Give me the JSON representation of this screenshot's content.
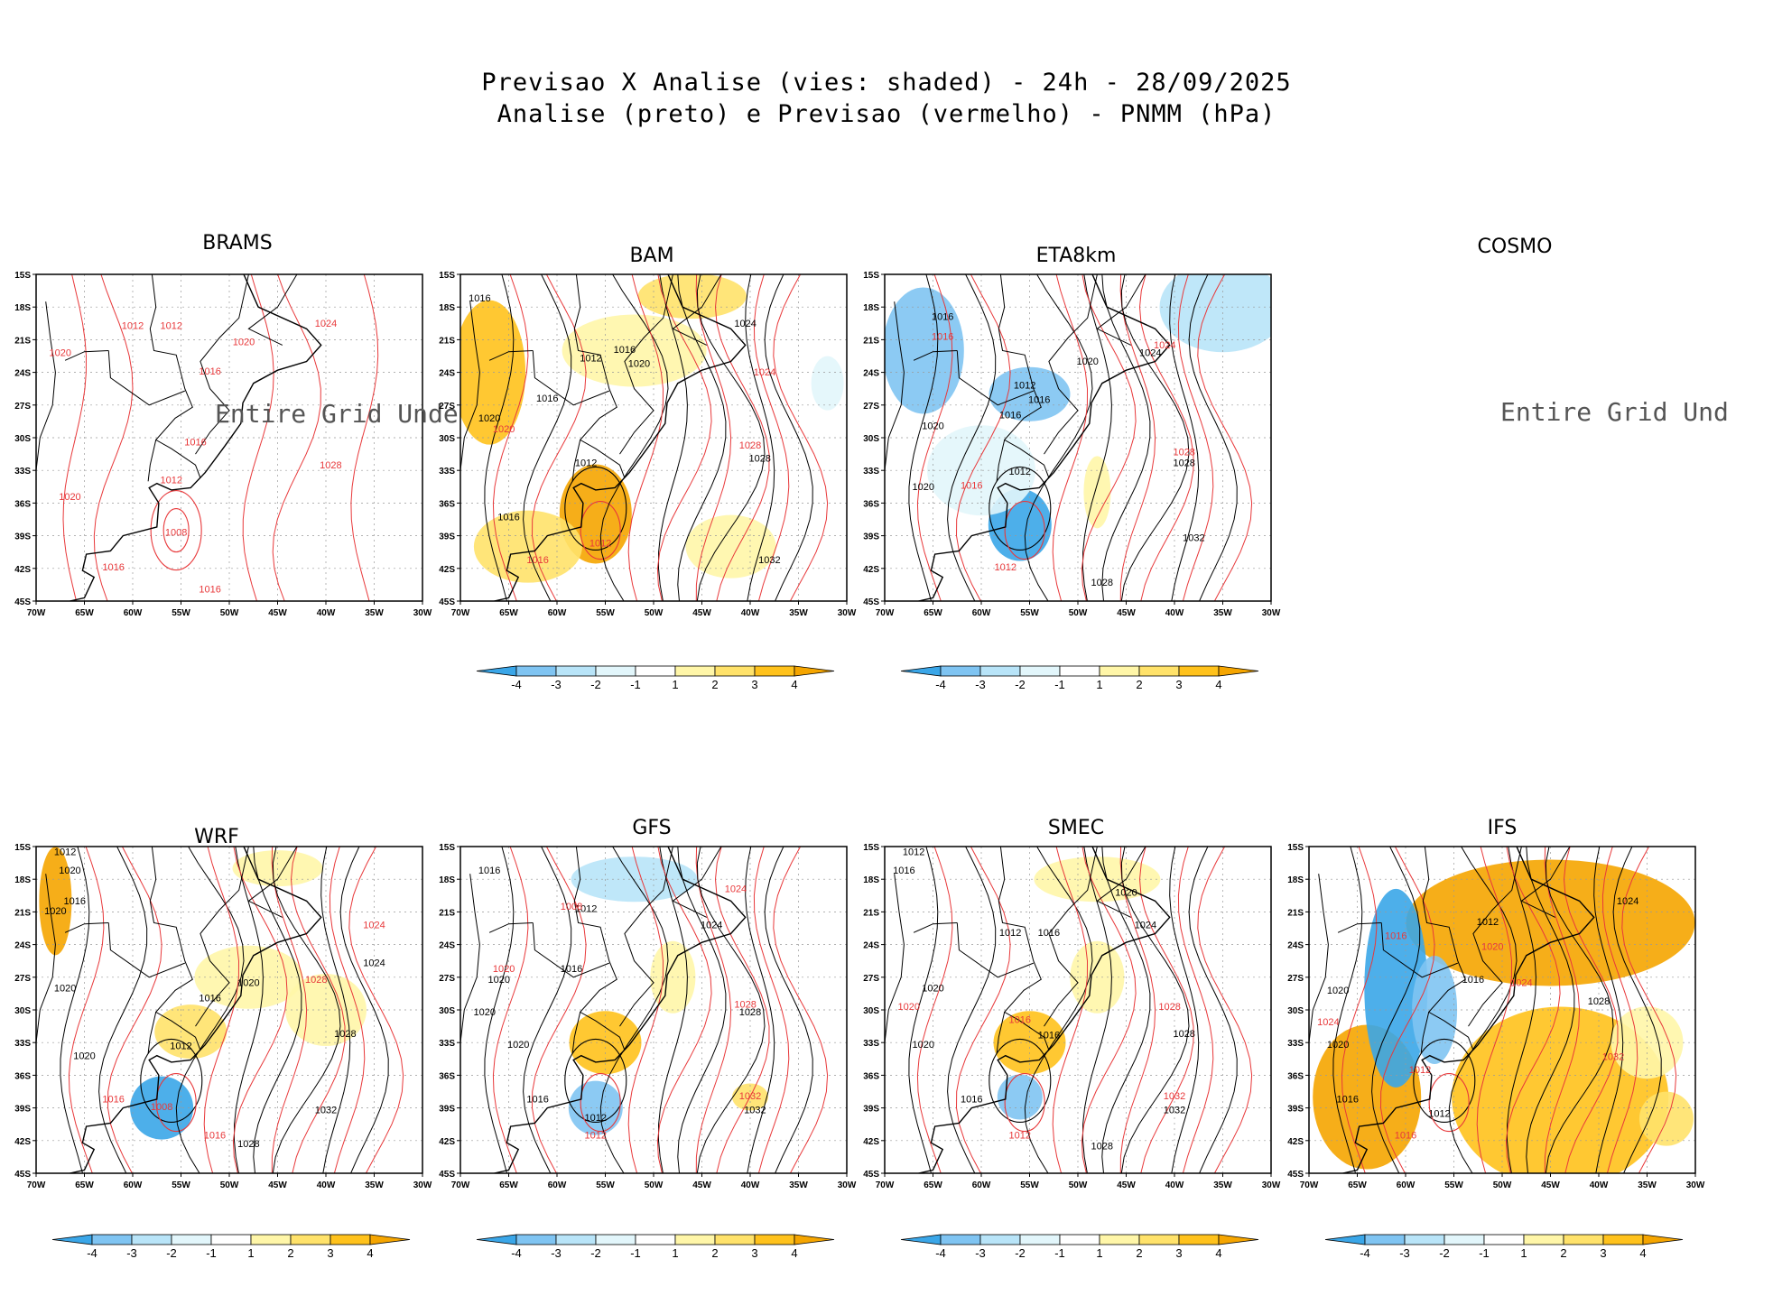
{
  "title": {
    "line1": "Previsao X Analise (vies: shaded) - 24h - 28/09/2025",
    "line2": "Analise (preto) e Previsao (vermelho) - PNMM (hPa)"
  },
  "axes": {
    "lat_labels": [
      "15S",
      "18S",
      "21S",
      "24S",
      "27S",
      "30S",
      "33S",
      "36S",
      "39S",
      "42S",
      "45S"
    ],
    "lon_labels": [
      "70W",
      "65W",
      "60W",
      "55W",
      "50W",
      "45W",
      "40W",
      "35W",
      "30W"
    ]
  },
  "colorbar": {
    "labels": [
      "-4",
      "-3",
      "-2",
      "-1",
      "1",
      "2",
      "3",
      "4"
    ],
    "colors": [
      "#3aa6e8",
      "#7fc4f2",
      "#b8e4f8",
      "#e2f6fb",
      "#ffffff",
      "#fff6a8",
      "#ffe26a",
      "#ffc21c",
      "#f5a500"
    ]
  },
  "colors": {
    "analysis": "#000000",
    "forecast": "#e8383a",
    "bias_pos": "#ffc21c",
    "bias_neg": "#3aa6e8"
  },
  "panels": [
    {
      "id": "brams",
      "name": "BRAMS",
      "has_map": true,
      "shading": false,
      "undef_text": "Entire Grid Undef",
      "colorbar": false,
      "labels": [
        {
          "t": "1012",
          "c": "r",
          "lon": -60,
          "lat": -20
        },
        {
          "t": "1012",
          "c": "r",
          "lon": -56,
          "lat": -20
        },
        {
          "t": "1020",
          "c": "r",
          "lon": -67.5,
          "lat": -22.5
        },
        {
          "t": "1020",
          "c": "r",
          "lon": -48.5,
          "lat": -21.5
        },
        {
          "t": "1024",
          "c": "r",
          "lon": -40,
          "lat": -19.8
        },
        {
          "t": "1016",
          "c": "r",
          "lon": -52,
          "lat": -24.2
        },
        {
          "t": "1016",
          "c": "r",
          "lon": -53.5,
          "lat": -30.7
        },
        {
          "t": "1012",
          "c": "r",
          "lon": -56,
          "lat": -34.2
        },
        {
          "t": "1020",
          "c": "r",
          "lon": -66.5,
          "lat": -35.7
        },
        {
          "t": "1008",
          "c": "r",
          "lon": -55.5,
          "lat": -39
        },
        {
          "t": "1028",
          "c": "r",
          "lon": -39.5,
          "lat": -32.8
        },
        {
          "t": "1016",
          "c": "r",
          "lon": -62,
          "lat": -42.2
        },
        {
          "t": "1016",
          "c": "r",
          "lon": -52,
          "lat": -44.2
        }
      ]
    },
    {
      "id": "bam",
      "name": "BAM",
      "has_map": true,
      "shading": true,
      "undef_text": "",
      "colorbar": true,
      "labels": [
        {
          "t": "1016",
          "c": "k",
          "lon": -68,
          "lat": -17.5
        },
        {
          "t": "1016",
          "c": "k",
          "lon": -53,
          "lat": -22.2
        },
        {
          "t": "1020",
          "c": "k",
          "lon": -51.5,
          "lat": -23.5
        },
        {
          "t": "1012",
          "c": "k",
          "lon": -56.5,
          "lat": -23
        },
        {
          "t": "1024",
          "c": "k",
          "lon": -40.5,
          "lat": -19.8
        },
        {
          "t": "1016",
          "c": "k",
          "lon": -61,
          "lat": -26.7
        },
        {
          "t": "1020",
          "c": "k",
          "lon": -67,
          "lat": -28.5
        },
        {
          "t": "1012",
          "c": "k",
          "lon": -57,
          "lat": -32.6
        },
        {
          "t": "1016",
          "c": "k",
          "lon": -65,
          "lat": -37.6
        },
        {
          "t": "1028",
          "c": "k",
          "lon": -39,
          "lat": -32.2
        },
        {
          "t": "1032",
          "c": "k",
          "lon": -38,
          "lat": -41.5
        },
        {
          "t": "1024",
          "c": "r",
          "lon": -38.5,
          "lat": -24.3
        },
        {
          "t": "1028",
          "c": "r",
          "lon": -40,
          "lat": -31
        },
        {
          "t": "1020",
          "c": "r",
          "lon": -65.5,
          "lat": -29.5
        },
        {
          "t": "1016",
          "c": "r",
          "lon": -62,
          "lat": -41.5
        },
        {
          "t": "1012",
          "c": "r",
          "lon": -55.5,
          "lat": -40
        }
      ]
    },
    {
      "id": "eta8km",
      "name": "ETA8km",
      "has_map": true,
      "shading": true,
      "undef_text": "",
      "colorbar": true,
      "labels": [
        {
          "t": "1016",
          "c": "k",
          "lon": -64,
          "lat": -19.2
        },
        {
          "t": "1020",
          "c": "k",
          "lon": -49,
          "lat": -23.3
        },
        {
          "t": "1024",
          "c": "k",
          "lon": -42.5,
          "lat": -22.5
        },
        {
          "t": "1012",
          "c": "k",
          "lon": -55.5,
          "lat": -25.5
        },
        {
          "t": "1016",
          "c": "k",
          "lon": -54,
          "lat": -26.8
        },
        {
          "t": "1016",
          "c": "k",
          "lon": -57,
          "lat": -28.2
        },
        {
          "t": "1020",
          "c": "k",
          "lon": -65,
          "lat": -29.2
        },
        {
          "t": "1012",
          "c": "k",
          "lon": -56,
          "lat": -33.4
        },
        {
          "t": "1020",
          "c": "k",
          "lon": -66,
          "lat": -34.8
        },
        {
          "t": "1028",
          "c": "k",
          "lon": -39,
          "lat": -32.6
        },
        {
          "t": "1032",
          "c": "k",
          "lon": -38,
          "lat": -39.5
        },
        {
          "t": "1028",
          "c": "k",
          "lon": -47.5,
          "lat": -43.6
        },
        {
          "t": "1024",
          "c": "r",
          "lon": -41,
          "lat": -21.8
        },
        {
          "t": "1016",
          "c": "r",
          "lon": -64,
          "lat": -21
        },
        {
          "t": "1028",
          "c": "r",
          "lon": -39,
          "lat": -31.6
        },
        {
          "t": "1012",
          "c": "r",
          "lon": -57.5,
          "lat": -42.2
        },
        {
          "t": "1016",
          "c": "r",
          "lon": -61,
          "lat": -34.7
        }
      ]
    },
    {
      "id": "cosmo",
      "name": "COSMO",
      "has_map": false,
      "shading": false,
      "undef_text": "Entire Grid Und",
      "colorbar": false,
      "labels": []
    },
    {
      "id": "wrf",
      "name": "WRF",
      "has_map": true,
      "shading": true,
      "undef_text": "",
      "colorbar": true,
      "labels": [
        {
          "t": "1012",
          "c": "k",
          "lon": -67,
          "lat": -15.8
        },
        {
          "t": "1020",
          "c": "k",
          "lon": -66.5,
          "lat": -17.5
        },
        {
          "t": "1016",
          "c": "k",
          "lon": -66,
          "lat": -20.3
        },
        {
          "t": "1020",
          "c": "k",
          "lon": -68,
          "lat": -21.2
        },
        {
          "t": "1020",
          "c": "k",
          "lon": -67,
          "lat": -28.3
        },
        {
          "t": "1020",
          "c": "k",
          "lon": -65,
          "lat": -34.5
        },
        {
          "t": "1016",
          "c": "k",
          "lon": -52,
          "lat": -29.2
        },
        {
          "t": "1012",
          "c": "k",
          "lon": -55,
          "lat": -33.6
        },
        {
          "t": "1020",
          "c": "k",
          "lon": -48,
          "lat": -27.8
        },
        {
          "t": "1024",
          "c": "k",
          "lon": -35,
          "lat": -26
        },
        {
          "t": "1028",
          "c": "k",
          "lon": -38,
          "lat": -32.5
        },
        {
          "t": "1032",
          "c": "k",
          "lon": -40,
          "lat": -39.5
        },
        {
          "t": "1028",
          "c": "k",
          "lon": -48,
          "lat": -42.6
        },
        {
          "t": "1024",
          "c": "r",
          "lon": -35,
          "lat": -22.5
        },
        {
          "t": "1028",
          "c": "r",
          "lon": -41,
          "lat": -27.5
        },
        {
          "t": "1016",
          "c": "r",
          "lon": -62,
          "lat": -38.5
        },
        {
          "t": "1008",
          "c": "r",
          "lon": -57,
          "lat": -39.2
        },
        {
          "t": "1016",
          "c": "r",
          "lon": -51.5,
          "lat": -41.8
        }
      ]
    },
    {
      "id": "gfs",
      "name": "GFS",
      "has_map": true,
      "shading": true,
      "undef_text": "",
      "colorbar": true,
      "labels": [
        {
          "t": "1016",
          "c": "k",
          "lon": -67,
          "lat": -17.5
        },
        {
          "t": "1012",
          "c": "k",
          "lon": -57,
          "lat": -21
        },
        {
          "t": "1024",
          "c": "k",
          "lon": -44,
          "lat": -22.5
        },
        {
          "t": "1020",
          "c": "k",
          "lon": -66,
          "lat": -27.5
        },
        {
          "t": "1016",
          "c": "k",
          "lon": -58.5,
          "lat": -26.5
        },
        {
          "t": "1020",
          "c": "k",
          "lon": -67.5,
          "lat": -30.5
        },
        {
          "t": "1020",
          "c": "k",
          "lon": -64,
          "lat": -33.5
        },
        {
          "t": "1028",
          "c": "k",
          "lon": -40,
          "lat": -30.5
        },
        {
          "t": "1016",
          "c": "k",
          "lon": -62,
          "lat": -38.5
        },
        {
          "t": "1012",
          "c": "k",
          "lon": -56,
          "lat": -40.2
        },
        {
          "t": "1032",
          "c": "k",
          "lon": -39.5,
          "lat": -39.5
        },
        {
          "t": "1024",
          "c": "r",
          "lon": -41.5,
          "lat": -19.2
        },
        {
          "t": "1028",
          "c": "r",
          "lon": -40.5,
          "lat": -29.8
        },
        {
          "t": "1032",
          "c": "r",
          "lon": -40,
          "lat": -38.2
        },
        {
          "t": "1012",
          "c": "r",
          "lon": -56,
          "lat": -41.8
        },
        {
          "t": "1008",
          "c": "r",
          "lon": -58.5,
          "lat": -20.8
        },
        {
          "t": "1020",
          "c": "r",
          "lon": -65.5,
          "lat": -26.5
        }
      ]
    },
    {
      "id": "smec",
      "name": "SMEC",
      "has_map": true,
      "shading": true,
      "undef_text": "",
      "colorbar": true,
      "labels": [
        {
          "t": "1012",
          "c": "k",
          "lon": -67,
          "lat": -15.8
        },
        {
          "t": "1016",
          "c": "k",
          "lon": -68,
          "lat": -17.5
        },
        {
          "t": "1020",
          "c": "k",
          "lon": -45,
          "lat": -19.5
        },
        {
          "t": "1016",
          "c": "k",
          "lon": -53,
          "lat": -23.2
        },
        {
          "t": "1012",
          "c": "k",
          "lon": -57,
          "lat": -23.2
        },
        {
          "t": "1024",
          "c": "k",
          "lon": -43,
          "lat": -22.5
        },
        {
          "t": "1020",
          "c": "k",
          "lon": -65,
          "lat": -28.3
        },
        {
          "t": "1020",
          "c": "k",
          "lon": -66,
          "lat": -33.5
        },
        {
          "t": "1016",
          "c": "k",
          "lon": -53,
          "lat": -32.6
        },
        {
          "t": "1028",
          "c": "k",
          "lon": -39,
          "lat": -32.5
        },
        {
          "t": "1016",
          "c": "k",
          "lon": -61,
          "lat": -38.5
        },
        {
          "t": "1032",
          "c": "k",
          "lon": -40,
          "lat": -39.5
        },
        {
          "t": "1028",
          "c": "k",
          "lon": -47.5,
          "lat": -42.8
        },
        {
          "t": "1028",
          "c": "r",
          "lon": -40.5,
          "lat": -30
        },
        {
          "t": "1032",
          "c": "r",
          "lon": -40,
          "lat": -38.2
        },
        {
          "t": "1012",
          "c": "r",
          "lon": -56,
          "lat": -41.8
        },
        {
          "t": "1016",
          "c": "r",
          "lon": -56,
          "lat": -31.2
        },
        {
          "t": "1020",
          "c": "r",
          "lon": -67.5,
          "lat": -30
        }
      ]
    },
    {
      "id": "ifs",
      "name": "IFS",
      "has_map": true,
      "shading": true,
      "undef_text": "",
      "colorbar": true,
      "labels": [
        {
          "t": "1024",
          "c": "k",
          "lon": -37,
          "lat": -20.3
        },
        {
          "t": "1028",
          "c": "k",
          "lon": -40,
          "lat": -29.5
        },
        {
          "t": "1012",
          "c": "k",
          "lon": -51.5,
          "lat": -22.2
        },
        {
          "t": "1016",
          "c": "k",
          "lon": -53,
          "lat": -27.5
        },
        {
          "t": "1020",
          "c": "k",
          "lon": -67,
          "lat": -28.5
        },
        {
          "t": "1020",
          "c": "k",
          "lon": -67,
          "lat": -33.5
        },
        {
          "t": "1016",
          "c": "k",
          "lon": -66,
          "lat": -38.5
        },
        {
          "t": "1012",
          "c": "k",
          "lon": -56.5,
          "lat": -39.8
        },
        {
          "t": "1024",
          "c": "r",
          "lon": -68,
          "lat": -31.4
        },
        {
          "t": "1020",
          "c": "r",
          "lon": -51,
          "lat": -24.5
        },
        {
          "t": "1016",
          "c": "r",
          "lon": -61,
          "lat": -23.5
        },
        {
          "t": "1032",
          "c": "r",
          "lon": -38.5,
          "lat": -34.6
        },
        {
          "t": "1024",
          "c": "r",
          "lon": -48,
          "lat": -27.8
        },
        {
          "t": "1016",
          "c": "r",
          "lon": -60,
          "lat": -41.8
        },
        {
          "t": "1012",
          "c": "r",
          "lon": -58.5,
          "lat": -35.8
        }
      ]
    }
  ]
}
